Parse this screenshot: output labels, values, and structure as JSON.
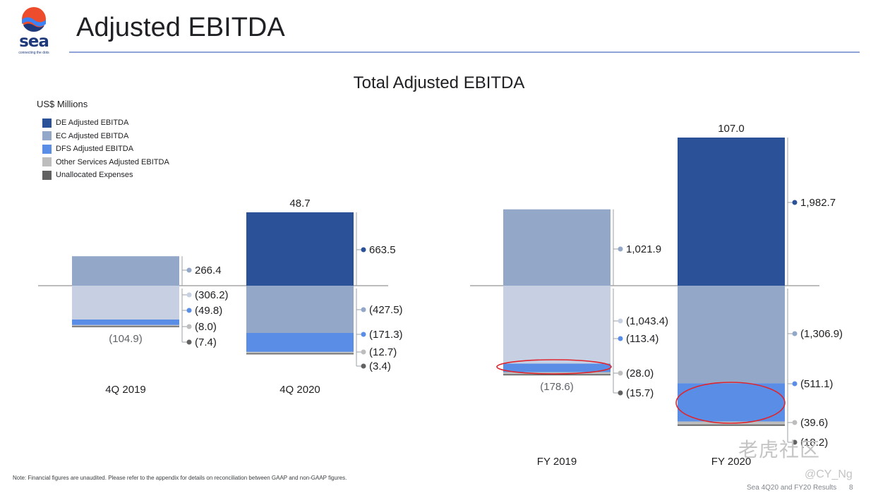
{
  "header": {
    "title": "Adjusted EBITDA",
    "logo_text": "sea",
    "logo_tagline": "connecting the dots"
  },
  "footer": {
    "note": "Note: Financial figures are unaudited. Please refer to the appendix for details on reconciliation between GAAP and non-GAAP figures.",
    "source": "Sea 4Q20 and FY20 Results",
    "page": "8"
  },
  "watermark": {
    "site": "老虎社区",
    "user": "@CY_Ng"
  },
  "colors": {
    "de": "#2b5298",
    "ec": "#93a7c9",
    "dfs": "#5a8ee6",
    "other": "#bdbdbd",
    "unalloc": "#616161",
    "ec_neg": "#c7d0e2",
    "axis": "#7a7a7a"
  },
  "chart_data": {
    "type": "bar",
    "title": "Total Adjusted EBITDA",
    "ylabel": "US$ Millions",
    "legend": [
      {
        "key": "de",
        "label": "DE Adjusted EBITDA"
      },
      {
        "key": "ec",
        "label": "EC Adjusted EBITDA"
      },
      {
        "key": "dfs",
        "label": "DFS Adjusted EBITDA"
      },
      {
        "key": "other",
        "label": "Other Services Adjusted EBITDA"
      },
      {
        "key": "unalloc",
        "label": "Unallocated Expenses"
      }
    ],
    "panels": [
      {
        "name": "quarterly",
        "categories": [
          {
            "label": "4Q 2019",
            "total": -104.9,
            "total_label": "(104.9)",
            "segments": [
              {
                "key": "ec",
                "value": 266.4,
                "label": "266.4"
              },
              {
                "key": "ec",
                "value": -306.2,
                "label": "(306.2)"
              },
              {
                "key": "dfs",
                "value": -49.8,
                "label": "(49.8)"
              },
              {
                "key": "other",
                "value": -8.0,
                "label": "(8.0)"
              },
              {
                "key": "unalloc",
                "value": -7.4,
                "label": "(7.4)"
              }
            ]
          },
          {
            "label": "4Q 2020",
            "total": 48.7,
            "total_label": "48.7",
            "segments": [
              {
                "key": "de",
                "value": 663.5,
                "label": "663.5"
              },
              {
                "key": "ec",
                "value": -427.5,
                "label": "(427.5)"
              },
              {
                "key": "dfs",
                "value": -171.3,
                "label": "(171.3)"
              },
              {
                "key": "other",
                "value": -12.7,
                "label": "(12.7)"
              },
              {
                "key": "unalloc",
                "value": -3.4,
                "label": "(3.4)"
              }
            ]
          }
        ]
      },
      {
        "name": "annual",
        "categories": [
          {
            "label": "FY 2019",
            "total": -178.6,
            "total_label": "(178.6)",
            "segments": [
              {
                "key": "ec",
                "value": 1021.9,
                "label": "1,021.9"
              },
              {
                "key": "ec",
                "value": -1043.4,
                "label": "(1,043.4)"
              },
              {
                "key": "dfs",
                "value": -113.4,
                "label": "(113.4)"
              },
              {
                "key": "other",
                "value": -28.0,
                "label": "(28.0)"
              },
              {
                "key": "unalloc",
                "value": -15.7,
                "label": "(15.7)"
              }
            ]
          },
          {
            "label": "FY 2020",
            "total": 107.0,
            "total_label": "107.0",
            "segments": [
              {
                "key": "de",
                "value": 1982.7,
                "label": "1,982.7"
              },
              {
                "key": "ec",
                "value": -1306.9,
                "label": "(1,306.9)"
              },
              {
                "key": "dfs",
                "value": -511.1,
                "label": "(511.1)"
              },
              {
                "key": "other",
                "value": -39.6,
                "label": "(39.6)"
              },
              {
                "key": "unalloc",
                "value": -18.2,
                "label": "(18.2)"
              }
            ]
          }
        ]
      }
    ]
  }
}
